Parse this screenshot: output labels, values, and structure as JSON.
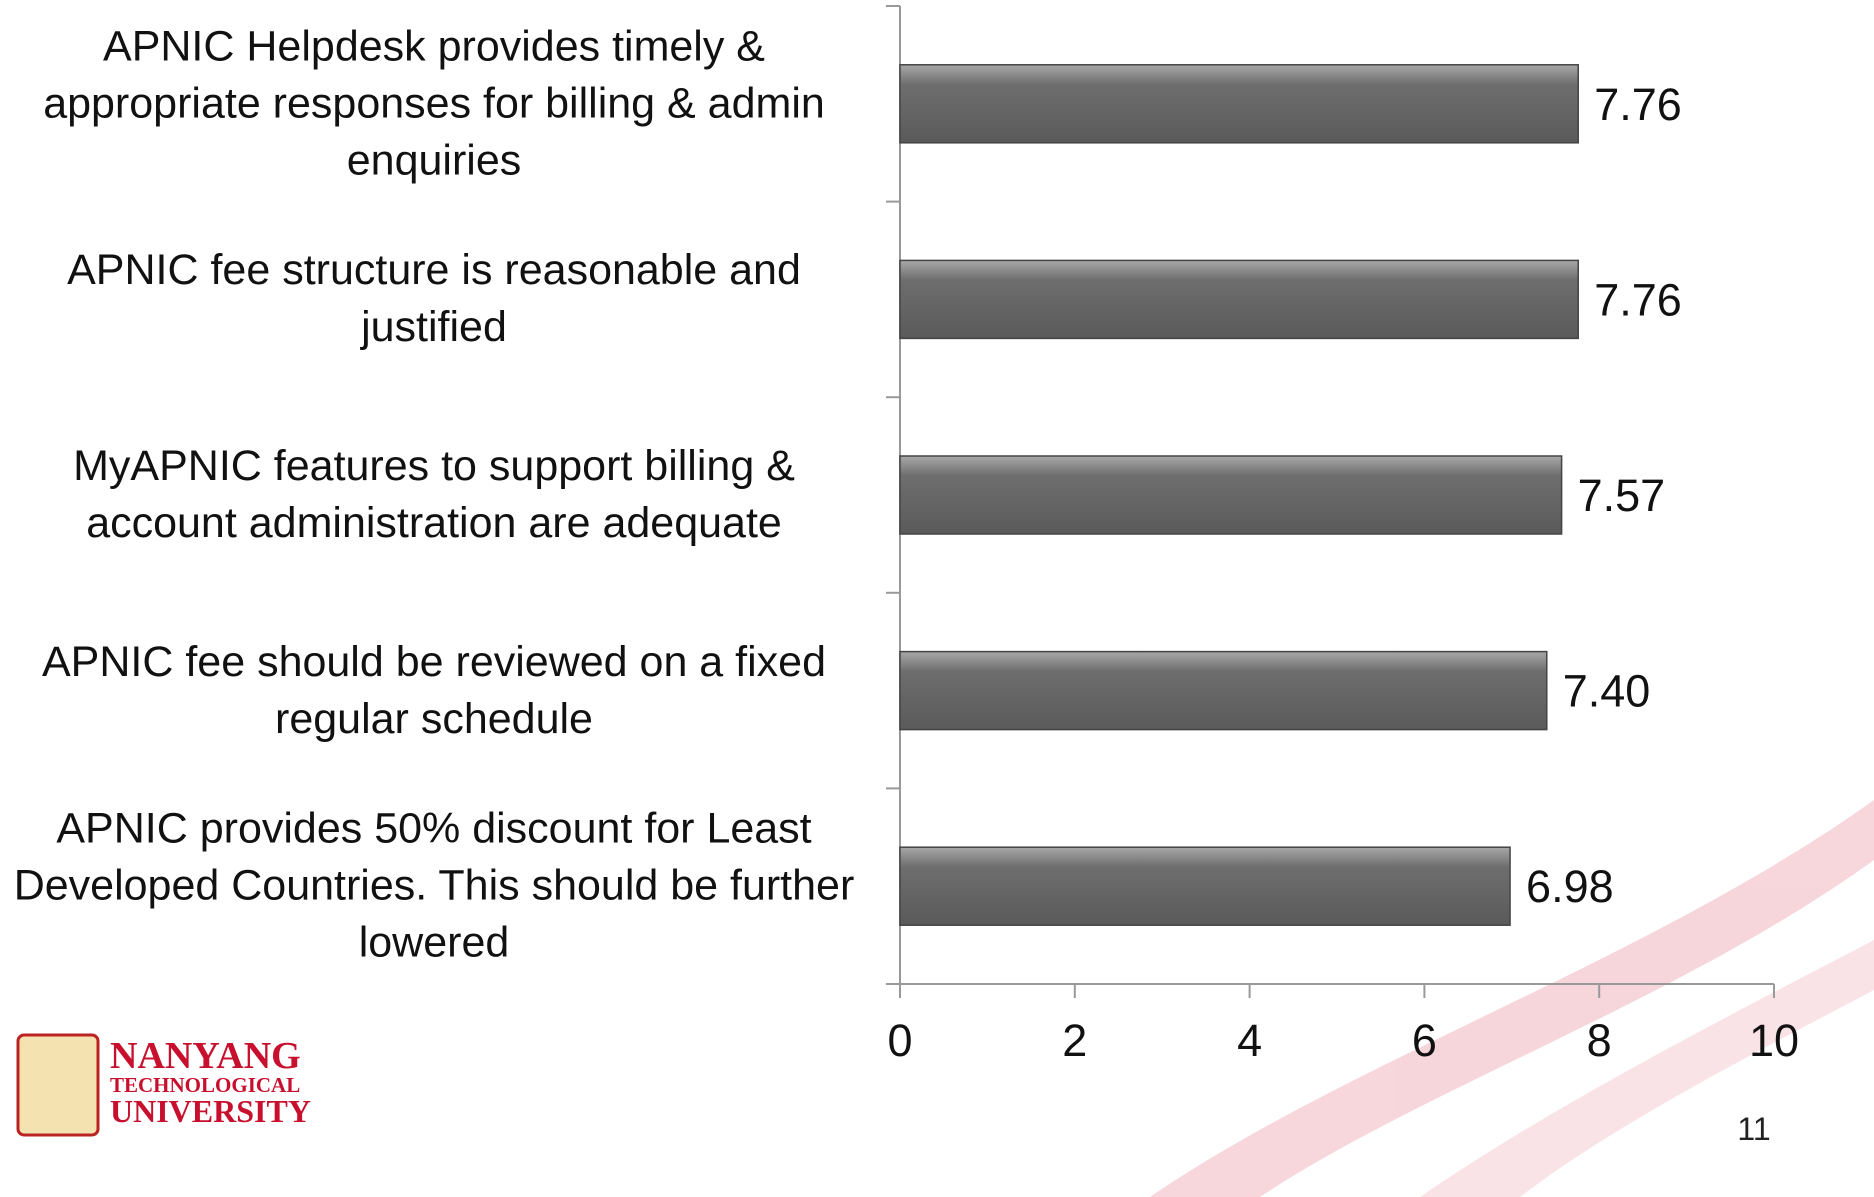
{
  "chart_data": {
    "type": "hbar",
    "categories": [
      "APNIC Helpdesk provides timely & appropriate responses for billing & admin enquiries",
      "APNIC fee structure is reasonable and justified",
      "MyAPNIC features to support billing & account administration are adequate",
      "APNIC fee should be reviewed on a fixed regular schedule",
      "APNIC provides 50% discount for Least Developed Countries. This should be further lowered"
    ],
    "values": [
      7.76,
      7.76,
      7.57,
      7.4,
      6.98
    ],
    "value_labels": [
      "7.76",
      "7.76",
      "7.57",
      "7.40",
      "6.98"
    ],
    "color": "#6b6b6b",
    "xlim": [
      0,
      10
    ],
    "xticks": [
      0,
      2,
      4,
      6,
      8,
      10
    ],
    "grid": false
  },
  "logo": {
    "line1": "NANYANG",
    "line2": "TECHNOLOGICAL",
    "line3": "UNIVERSITY"
  },
  "page_number": "11"
}
